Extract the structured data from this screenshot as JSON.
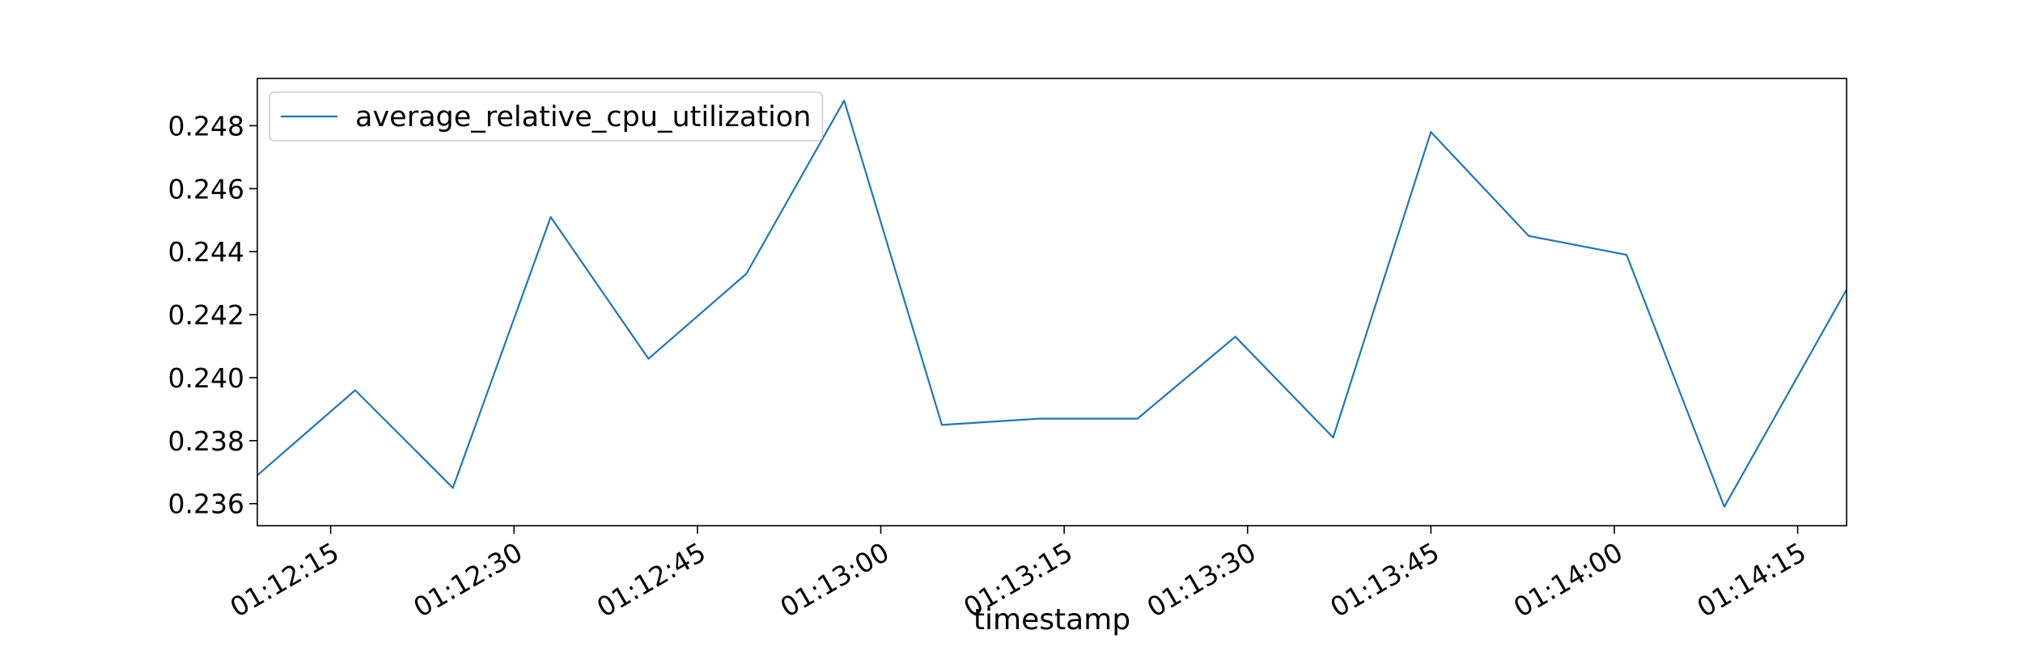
{
  "chart_data": {
    "type": "line",
    "title": "",
    "xlabel": "timestamp",
    "ylabel": "",
    "x_ticks": [
      "01:12:15",
      "01:12:30",
      "01:12:45",
      "01:13:00",
      "01:13:15",
      "01:13:30",
      "01:13:45",
      "01:14:00",
      "01:14:15"
    ],
    "y_ticks": [
      "0.236",
      "0.238",
      "0.240",
      "0.242",
      "0.244",
      "0.246",
      "0.248"
    ],
    "xlim": [
      "01:12:09",
      "01:14:19"
    ],
    "ylim": [
      0.2353,
      0.2495
    ],
    "grid": false,
    "legend_position": "top-left",
    "series": [
      {
        "name": "average_relative_cpu_utilization",
        "color": "#1f77b4",
        "x": [
          "01:12:09",
          "01:12:17",
          "01:12:25",
          "01:12:33",
          "01:12:41",
          "01:12:49",
          "01:12:57",
          "01:13:05",
          "01:13:13",
          "01:13:21",
          "01:13:29",
          "01:13:37",
          "01:13:45",
          "01:13:53",
          "01:14:01",
          "01:14:09",
          "01:14:19"
        ],
        "values": [
          0.2369,
          0.2396,
          0.2365,
          0.2451,
          0.2406,
          0.2433,
          0.2488,
          0.2385,
          0.2387,
          0.2387,
          0.2413,
          0.2381,
          0.2478,
          0.2445,
          0.2439,
          0.2359,
          0.2428
        ]
      }
    ]
  }
}
